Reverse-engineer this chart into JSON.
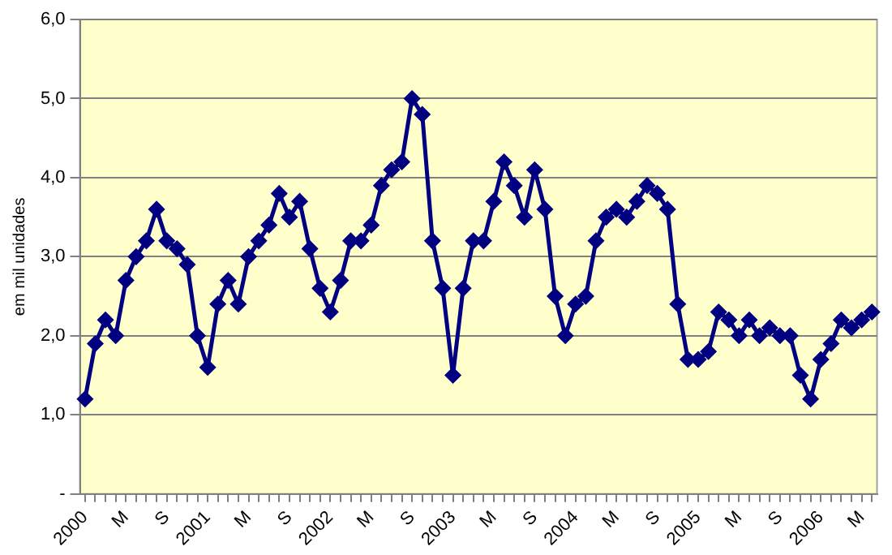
{
  "chart_data": {
    "type": "line",
    "ylabel": "em mil unidades",
    "categories": [
      "2000",
      null,
      null,
      null,
      "M",
      null,
      null,
      null,
      "S",
      null,
      null,
      null,
      "2001",
      null,
      null,
      null,
      "M",
      null,
      null,
      null,
      "S",
      null,
      null,
      null,
      "2002",
      null,
      null,
      null,
      "M",
      null,
      null,
      null,
      "S",
      null,
      null,
      null,
      "2003",
      null,
      null,
      null,
      "M",
      null,
      null,
      null,
      "S",
      null,
      null,
      null,
      "2004",
      null,
      null,
      null,
      "M",
      null,
      null,
      null,
      "S",
      null,
      null,
      null,
      "2005",
      null,
      null,
      null,
      "M",
      null,
      null,
      null,
      "S",
      null,
      null,
      null,
      "2006",
      null,
      null,
      null,
      "M",
      null
    ],
    "series": [
      {
        "color": "#000080",
        "values": [
          1.2,
          1.9,
          2.2,
          2.0,
          2.7,
          3.0,
          3.2,
          3.6,
          3.2,
          3.1,
          2.9,
          2.0,
          1.6,
          2.4,
          2.7,
          2.4,
          3.0,
          3.2,
          3.4,
          3.8,
          3.5,
          3.7,
          3.1,
          2.6,
          2.3,
          2.7,
          3.2,
          3.2,
          3.4,
          3.9,
          4.1,
          4.2,
          5.0,
          4.8,
          3.2,
          2.6,
          1.5,
          2.6,
          3.2,
          3.2,
          3.7,
          4.2,
          3.9,
          3.5,
          4.1,
          3.6,
          2.5,
          2.0,
          2.4,
          2.5,
          3.2,
          3.5,
          3.6,
          3.5,
          3.7,
          3.9,
          3.8,
          3.6,
          2.4,
          1.7,
          1.7,
          1.8,
          2.3,
          2.2,
          2.0,
          2.2,
          2.0,
          2.1,
          2.0,
          2.0,
          1.5,
          1.2,
          1.7,
          1.9,
          2.2,
          2.1,
          2.2,
          2.3
        ]
      }
    ],
    "ylim": [
      0,
      6
    ],
    "yticks": [
      {
        "value": 0,
        "label": "-"
      },
      {
        "value": 1,
        "label": "1,0"
      },
      {
        "value": 2,
        "label": "2,0"
      },
      {
        "value": 3,
        "label": "3,0"
      },
      {
        "value": 4,
        "label": "4,0"
      },
      {
        "value": 5,
        "label": "5,0"
      },
      {
        "value": 6,
        "label": "6,0"
      }
    ],
    "grid": "y",
    "marker": "diamond",
    "line_style": "solid",
    "legend": false
  }
}
